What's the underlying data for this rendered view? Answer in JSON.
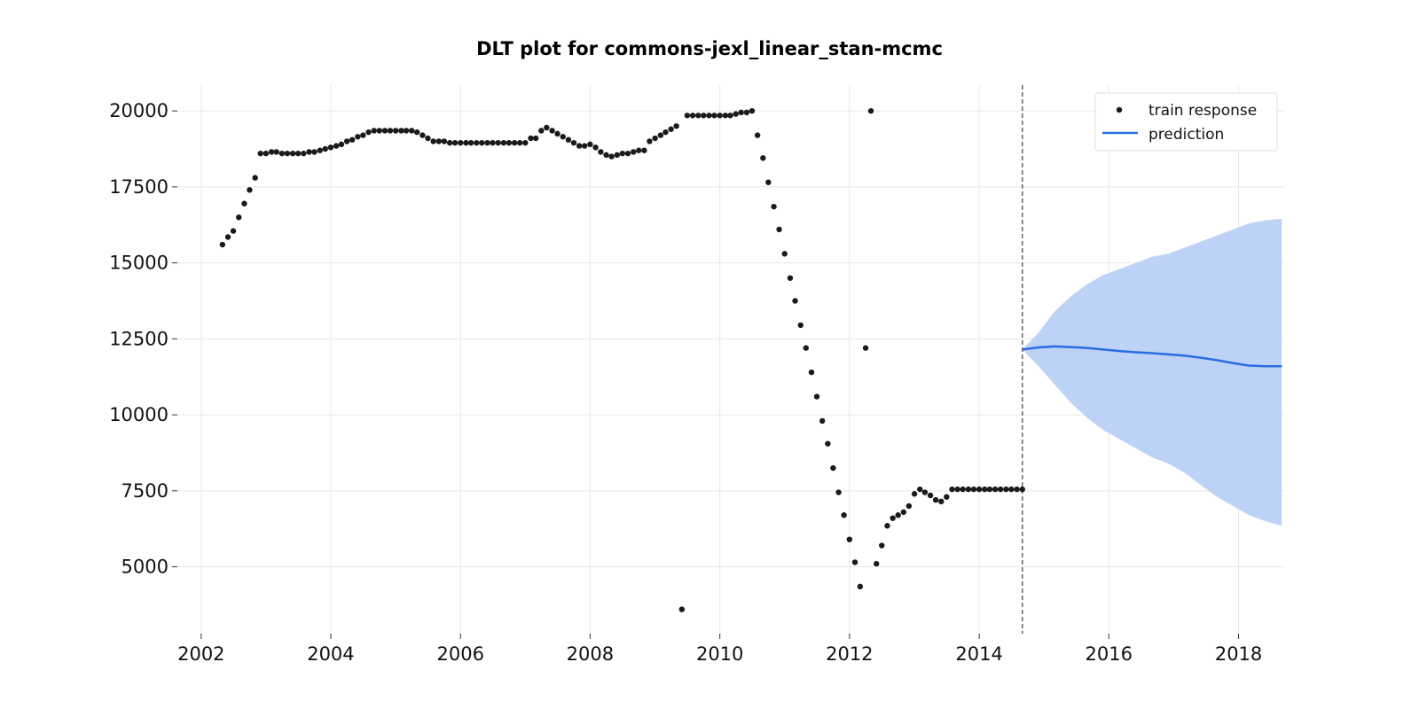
{
  "chart_data": {
    "type": "scatter",
    "title": "DLT plot for commons-jexl_linear_stan-mcmc",
    "xlabel": "",
    "ylabel": "",
    "x_ticks": [
      "2002",
      "2004",
      "2006",
      "2008",
      "2010",
      "2012",
      "2014",
      "2016",
      "2018"
    ],
    "y_ticks": [
      "5000",
      "7500",
      "10000",
      "12500",
      "15000",
      "17500",
      "20000"
    ],
    "xlim": [
      "2001-08-20",
      "2018-09-15"
    ],
    "ylim": [
      2800,
      20850
    ],
    "grid": true,
    "legend_position": "top-right",
    "train_end": "2014-09-01",
    "series": [
      {
        "name": "train response",
        "kind": "scatter",
        "color": "#1a1a1a",
        "points": [
          [
            "2002-05-01",
            15600
          ],
          [
            "2002-06-01",
            15850
          ],
          [
            "2002-07-01",
            16050
          ],
          [
            "2002-08-01",
            16500
          ],
          [
            "2002-09-01",
            16950
          ],
          [
            "2002-10-01",
            17400
          ],
          [
            "2002-11-01",
            17800
          ],
          [
            "2002-12-01",
            18600
          ],
          [
            "2003-01-01",
            18600
          ],
          [
            "2003-02-01",
            18650
          ],
          [
            "2003-03-01",
            18650
          ],
          [
            "2003-04-01",
            18600
          ],
          [
            "2003-05-01",
            18600
          ],
          [
            "2003-06-01",
            18600
          ],
          [
            "2003-07-01",
            18600
          ],
          [
            "2003-08-01",
            18600
          ],
          [
            "2003-09-01",
            18650
          ],
          [
            "2003-10-01",
            18650
          ],
          [
            "2003-11-01",
            18700
          ],
          [
            "2003-12-01",
            18750
          ],
          [
            "2004-01-01",
            18800
          ],
          [
            "2004-02-01",
            18850
          ],
          [
            "2004-03-01",
            18900
          ],
          [
            "2004-04-01",
            19000
          ],
          [
            "2004-05-01",
            19050
          ],
          [
            "2004-06-01",
            19150
          ],
          [
            "2004-07-01",
            19200
          ],
          [
            "2004-08-01",
            19300
          ],
          [
            "2004-09-01",
            19350
          ],
          [
            "2004-10-01",
            19350
          ],
          [
            "2004-11-01",
            19350
          ],
          [
            "2004-12-01",
            19350
          ],
          [
            "2005-01-01",
            19350
          ],
          [
            "2005-02-01",
            19350
          ],
          [
            "2005-03-01",
            19350
          ],
          [
            "2005-04-01",
            19350
          ],
          [
            "2005-05-01",
            19300
          ],
          [
            "2005-06-01",
            19200
          ],
          [
            "2005-07-01",
            19100
          ],
          [
            "2005-08-01",
            19000
          ],
          [
            "2005-09-01",
            19000
          ],
          [
            "2005-10-01",
            19000
          ],
          [
            "2005-11-01",
            18950
          ],
          [
            "2005-12-01",
            18950
          ],
          [
            "2006-01-01",
            18950
          ],
          [
            "2006-02-01",
            18950
          ],
          [
            "2006-03-01",
            18950
          ],
          [
            "2006-04-01",
            18950
          ],
          [
            "2006-05-01",
            18950
          ],
          [
            "2006-06-01",
            18950
          ],
          [
            "2006-07-01",
            18950
          ],
          [
            "2006-08-01",
            18950
          ],
          [
            "2006-09-01",
            18950
          ],
          [
            "2006-10-01",
            18950
          ],
          [
            "2006-11-01",
            18950
          ],
          [
            "2006-12-01",
            18950
          ],
          [
            "2007-01-01",
            18950
          ],
          [
            "2007-02-01",
            19100
          ],
          [
            "2007-03-01",
            19100
          ],
          [
            "2007-04-01",
            19350
          ],
          [
            "2007-05-01",
            19450
          ],
          [
            "2007-06-01",
            19350
          ],
          [
            "2007-07-01",
            19250
          ],
          [
            "2007-08-01",
            19150
          ],
          [
            "2007-09-01",
            19050
          ],
          [
            "2007-10-01",
            18950
          ],
          [
            "2007-11-01",
            18850
          ],
          [
            "2007-12-01",
            18850
          ],
          [
            "2008-01-01",
            18900
          ],
          [
            "2008-02-01",
            18800
          ],
          [
            "2008-03-01",
            18650
          ],
          [
            "2008-04-01",
            18550
          ],
          [
            "2008-05-01",
            18500
          ],
          [
            "2008-06-01",
            18550
          ],
          [
            "2008-07-01",
            18600
          ],
          [
            "2008-08-01",
            18600
          ],
          [
            "2008-09-01",
            18650
          ],
          [
            "2008-10-01",
            18700
          ],
          [
            "2008-11-01",
            18700
          ],
          [
            "2008-12-01",
            19000
          ],
          [
            "2009-01-01",
            19100
          ],
          [
            "2009-02-01",
            19200
          ],
          [
            "2009-03-01",
            19300
          ],
          [
            "2009-04-01",
            19400
          ],
          [
            "2009-05-01",
            19500
          ],
          [
            "2009-06-01",
            3600
          ],
          [
            "2009-07-01",
            19850
          ],
          [
            "2009-08-01",
            19850
          ],
          [
            "2009-09-01",
            19850
          ],
          [
            "2009-10-01",
            19850
          ],
          [
            "2009-11-01",
            19850
          ],
          [
            "2009-12-01",
            19850
          ],
          [
            "2010-01-01",
            19850
          ],
          [
            "2010-02-01",
            19850
          ],
          [
            "2010-03-01",
            19850
          ],
          [
            "2010-04-01",
            19900
          ],
          [
            "2010-05-01",
            19950
          ],
          [
            "2010-06-01",
            19950
          ],
          [
            "2010-07-01",
            20000
          ],
          [
            "2010-08-01",
            19200
          ],
          [
            "2010-09-01",
            18450
          ],
          [
            "2010-10-01",
            17650
          ],
          [
            "2010-11-01",
            16850
          ],
          [
            "2010-12-01",
            16100
          ],
          [
            "2011-01-01",
            15300
          ],
          [
            "2011-02-01",
            14500
          ],
          [
            "2011-03-01",
            13750
          ],
          [
            "2011-04-01",
            12950
          ],
          [
            "2011-05-01",
            12200
          ],
          [
            "2011-06-01",
            11400
          ],
          [
            "2011-07-01",
            10600
          ],
          [
            "2011-08-01",
            9800
          ],
          [
            "2011-09-01",
            9050
          ],
          [
            "2011-10-01",
            8250
          ],
          [
            "2011-11-01",
            7450
          ],
          [
            "2011-12-01",
            6700
          ],
          [
            "2012-01-01",
            5900
          ],
          [
            "2012-02-01",
            5150
          ],
          [
            "2012-03-01",
            4350
          ],
          [
            "2012-04-01",
            12200
          ],
          [
            "2012-05-01",
            20000
          ],
          [
            "2012-06-01",
            5100
          ],
          [
            "2012-07-01",
            5700
          ],
          [
            "2012-08-01",
            6350
          ],
          [
            "2012-09-01",
            6600
          ],
          [
            "2012-10-01",
            6700
          ],
          [
            "2012-11-01",
            6800
          ],
          [
            "2012-12-01",
            7000
          ],
          [
            "2013-01-01",
            7400
          ],
          [
            "2013-02-01",
            7550
          ],
          [
            "2013-03-01",
            7450
          ],
          [
            "2013-04-01",
            7350
          ],
          [
            "2013-05-01",
            7200
          ],
          [
            "2013-06-01",
            7150
          ],
          [
            "2013-07-01",
            7300
          ],
          [
            "2013-08-01",
            7550
          ],
          [
            "2013-09-01",
            7550
          ],
          [
            "2013-10-01",
            7550
          ],
          [
            "2013-11-01",
            7550
          ],
          [
            "2013-12-01",
            7550
          ],
          [
            "2014-01-01",
            7550
          ],
          [
            "2014-02-01",
            7550
          ],
          [
            "2014-03-01",
            7550
          ],
          [
            "2014-04-01",
            7550
          ],
          [
            "2014-05-01",
            7550
          ],
          [
            "2014-06-01",
            7550
          ],
          [
            "2014-07-01",
            7550
          ],
          [
            "2014-08-01",
            7550
          ],
          [
            "2014-09-01",
            7550
          ]
        ]
      },
      {
        "name": "prediction",
        "kind": "line",
        "color": "#2a6de1",
        "band_color": "#bcd2f7",
        "points": [
          [
            "2014-09-01",
            12150
          ],
          [
            "2014-12-01",
            12220
          ],
          [
            "2015-03-01",
            12250
          ],
          [
            "2015-06-01",
            12230
          ],
          [
            "2015-09-01",
            12200
          ],
          [
            "2015-12-01",
            12150
          ],
          [
            "2016-03-01",
            12100
          ],
          [
            "2016-06-01",
            12060
          ],
          [
            "2016-09-01",
            12030
          ],
          [
            "2016-12-01",
            11990
          ],
          [
            "2017-03-01",
            11950
          ],
          [
            "2017-06-01",
            11880
          ],
          [
            "2017-09-01",
            11800
          ],
          [
            "2017-12-01",
            11700
          ],
          [
            "2018-03-01",
            11620
          ],
          [
            "2018-06-01",
            11600
          ],
          [
            "2018-09-01",
            11600
          ]
        ],
        "band_upper": [
          [
            "2014-09-01",
            12150
          ],
          [
            "2014-12-01",
            12700
          ],
          [
            "2015-03-01",
            13400
          ],
          [
            "2015-06-01",
            13900
          ],
          [
            "2015-09-01",
            14300
          ],
          [
            "2015-12-01",
            14600
          ],
          [
            "2016-03-01",
            14800
          ],
          [
            "2016-06-01",
            15000
          ],
          [
            "2016-09-01",
            15200
          ],
          [
            "2016-12-01",
            15300
          ],
          [
            "2017-03-01",
            15500
          ],
          [
            "2017-06-01",
            15700
          ],
          [
            "2017-09-01",
            15900
          ],
          [
            "2017-12-01",
            16100
          ],
          [
            "2018-03-01",
            16300
          ],
          [
            "2018-06-01",
            16400
          ],
          [
            "2018-09-01",
            16450
          ]
        ],
        "band_lower": [
          [
            "2014-09-01",
            12150
          ],
          [
            "2014-12-01",
            11600
          ],
          [
            "2015-03-01",
            11000
          ],
          [
            "2015-06-01",
            10400
          ],
          [
            "2015-09-01",
            9900
          ],
          [
            "2015-12-01",
            9500
          ],
          [
            "2016-03-01",
            9200
          ],
          [
            "2016-06-01",
            8900
          ],
          [
            "2016-09-01",
            8600
          ],
          [
            "2016-12-01",
            8400
          ],
          [
            "2017-03-01",
            8100
          ],
          [
            "2017-06-01",
            7700
          ],
          [
            "2017-09-01",
            7300
          ],
          [
            "2017-12-01",
            7000
          ],
          [
            "2018-03-01",
            6700
          ],
          [
            "2018-06-01",
            6500
          ],
          [
            "2018-09-01",
            6350
          ]
        ]
      }
    ]
  }
}
